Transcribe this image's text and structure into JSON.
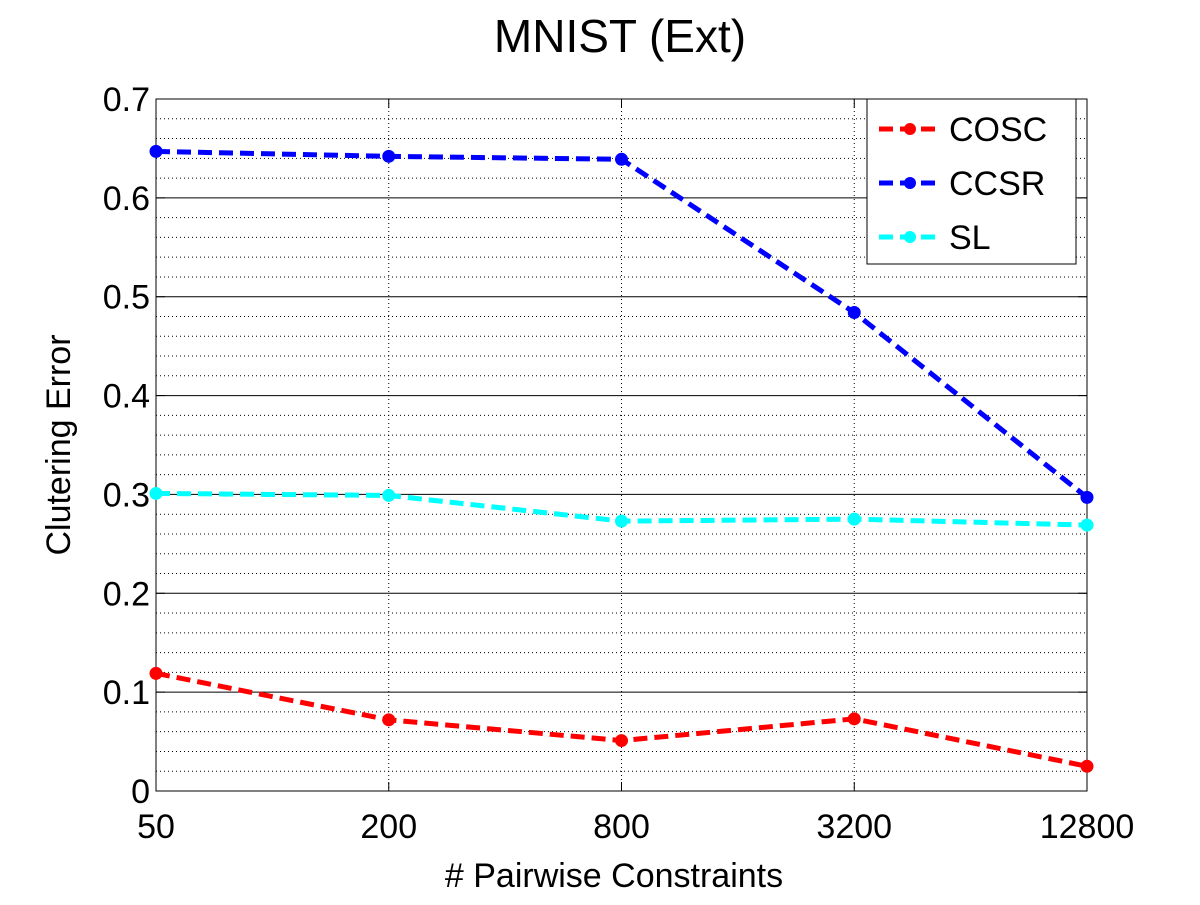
{
  "chart_data": {
    "type": "line",
    "title": "MNIST (Ext)",
    "xlabel": "# Pairwise Constraints",
    "ylabel": "Clutering Error",
    "categories": [
      "50",
      "200",
      "800",
      "3200",
      "12800"
    ],
    "ylim": [
      0,
      0.7
    ],
    "yticks": [
      0,
      0.1,
      0.2,
      0.3,
      0.4,
      0.5,
      0.6,
      0.7
    ],
    "ytick_labels": [
      "0",
      "0.1",
      "0.2",
      "0.3",
      "0.4",
      "0.5",
      "0.6",
      "0.7"
    ],
    "grid": true,
    "legend_position": "top-right",
    "series": [
      {
        "name": "COSC",
        "color": "#ff0000",
        "values": [
          0.119,
          0.072,
          0.051,
          0.073,
          0.025
        ]
      },
      {
        "name": "CCSR",
        "color": "#0000ff",
        "values": [
          0.647,
          0.642,
          0.639,
          0.484,
          0.297
        ]
      },
      {
        "name": "SL",
        "color": "#00ffff",
        "values": [
          0.301,
          0.299,
          0.273,
          0.275,
          0.269
        ]
      }
    ]
  }
}
